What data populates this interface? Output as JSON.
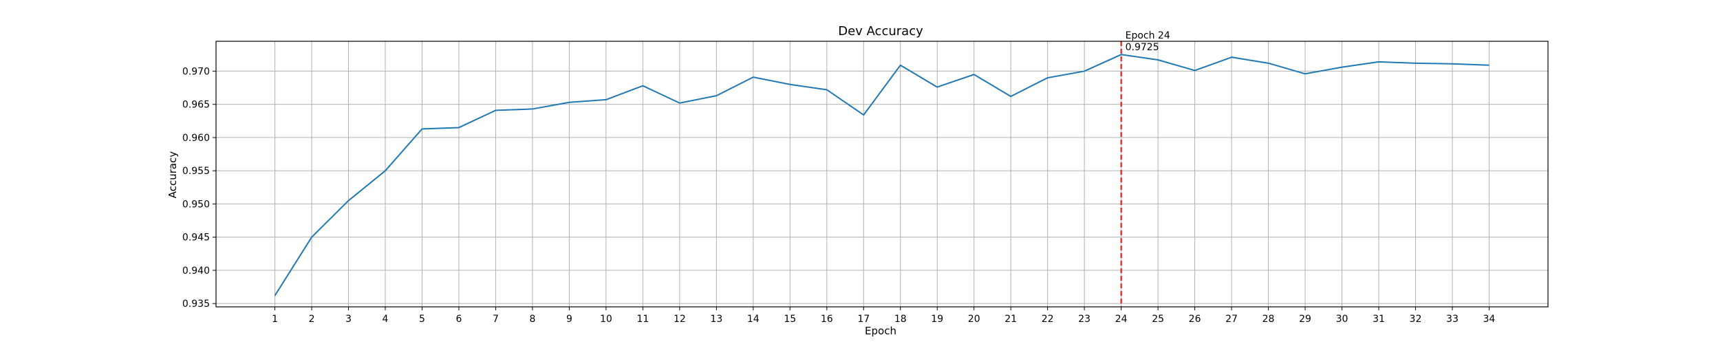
{
  "chart_data": {
    "type": "line",
    "title": "Dev Accuracy",
    "xlabel": "Epoch",
    "ylabel": "Accuracy",
    "x": [
      1,
      2,
      3,
      4,
      5,
      6,
      7,
      8,
      9,
      10,
      11,
      12,
      13,
      14,
      15,
      16,
      17,
      18,
      19,
      20,
      21,
      22,
      23,
      24,
      25,
      26,
      27,
      28,
      29,
      30,
      31,
      32,
      33,
      34
    ],
    "xticks": [
      "1",
      "2",
      "3",
      "4",
      "5",
      "6",
      "7",
      "8",
      "9",
      "10",
      "11",
      "12",
      "13",
      "14",
      "15",
      "16",
      "17",
      "18",
      "19",
      "20",
      "21",
      "22",
      "23",
      "24",
      "25",
      "26",
      "27",
      "28",
      "29",
      "30",
      "31",
      "32",
      "33",
      "34"
    ],
    "yticks": [
      "0.935",
      "0.940",
      "0.945",
      "0.950",
      "0.955",
      "0.960",
      "0.965",
      "0.970"
    ],
    "ytick_values": [
      0.935,
      0.94,
      0.945,
      0.95,
      0.955,
      0.96,
      0.965,
      0.97
    ],
    "xlim": [
      -0.6,
      35.6
    ],
    "ylim": [
      0.9345,
      0.9745
    ],
    "grid": true,
    "series": [
      {
        "color": "#1f77b4",
        "values": [
          0.9362,
          0.945,
          0.9505,
          0.955,
          0.9613,
          0.9615,
          0.9641,
          0.9643,
          0.9653,
          0.9657,
          0.9678,
          0.9652,
          0.9663,
          0.9691,
          0.968,
          0.9672,
          0.9634,
          0.9709,
          0.9676,
          0.9695,
          0.9662,
          0.969,
          0.97,
          0.9725,
          0.9717,
          0.9701,
          0.9721,
          0.9712,
          0.9696,
          0.9706,
          0.9714,
          0.9712,
          0.9711,
          0.9709
        ]
      }
    ],
    "marker": {
      "x": 24,
      "color": "#ff0000",
      "style": "dashed",
      "label_line1": "Epoch 24",
      "label_line2": "0.9725"
    }
  }
}
